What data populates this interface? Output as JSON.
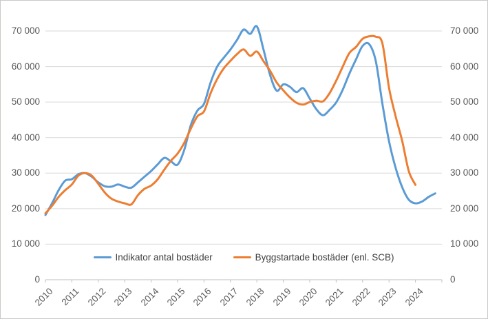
{
  "chart_data": {
    "type": "line",
    "title": "",
    "xlabel": "",
    "ylabel": "",
    "xlim": [
      2010,
      2025
    ],
    "ylim": [
      0,
      75000
    ],
    "grid": "horizontal",
    "legend_position": "bottom",
    "x_tick_labels": [
      "2010",
      "2011",
      "2012",
      "2013",
      "2014",
      "2015",
      "2016",
      "2017",
      "2018",
      "2019",
      "2020",
      "2021",
      "2022",
      "2023",
      "2024"
    ],
    "y_ticks": [
      0,
      10000,
      20000,
      30000,
      40000,
      50000,
      60000,
      70000
    ],
    "y_tick_labels": [
      "0",
      "10 000",
      "20 000",
      "30 000",
      "40 000",
      "50 000",
      "60 000",
      "70 000"
    ],
    "y_axis_sides": "both",
    "grid_color": "#d9d9d9",
    "axis_color": "#bfbfbf",
    "tick_label_color": "#595959",
    "legend_text_color": "#404040",
    "series": [
      {
        "name": "Indikator antal bostäder",
        "color": "#5b9bd5",
        "x": [
          2010.0,
          2010.25,
          2010.5,
          2010.75,
          2011.0,
          2011.25,
          2011.5,
          2011.75,
          2012.0,
          2012.25,
          2012.5,
          2012.75,
          2013.0,
          2013.25,
          2013.5,
          2013.75,
          2014.0,
          2014.25,
          2014.5,
          2014.75,
          2015.0,
          2015.25,
          2015.5,
          2015.75,
          2016.0,
          2016.25,
          2016.5,
          2016.75,
          2017.0,
          2017.25,
          2017.5,
          2017.75,
          2018.0,
          2018.25,
          2018.5,
          2018.75,
          2019.0,
          2019.25,
          2019.5,
          2019.75,
          2020.0,
          2020.25,
          2020.5,
          2020.75,
          2021.0,
          2021.25,
          2021.5,
          2021.75,
          2022.0,
          2022.25,
          2022.5,
          2022.75,
          2023.0,
          2023.25,
          2023.5,
          2023.75,
          2024.0,
          2024.25,
          2024.5,
          2024.75
        ],
        "values": [
          18200,
          21500,
          25200,
          27900,
          28300,
          29700,
          30000,
          29000,
          27400,
          26300,
          26200,
          26800,
          26200,
          25900,
          27400,
          29000,
          30600,
          32500,
          34300,
          33300,
          32400,
          36500,
          43500,
          47600,
          49500,
          55500,
          60000,
          62500,
          64800,
          67500,
          70400,
          69200,
          71300,
          64800,
          57600,
          53200,
          55000,
          54300,
          52800,
          53900,
          51000,
          48000,
          46300,
          47800,
          49900,
          53500,
          58000,
          62000,
          65800,
          66300,
          61500,
          49500,
          39000,
          31500,
          26000,
          22500,
          21500,
          22000,
          23300,
          24300
        ]
      },
      {
        "name": "Byggstartade bostäder (enl. SCB)",
        "color": "#ed7d31",
        "x": [
          2010.0,
          2010.25,
          2010.5,
          2010.75,
          2011.0,
          2011.25,
          2011.5,
          2011.75,
          2012.0,
          2012.25,
          2012.5,
          2012.75,
          2013.0,
          2013.25,
          2013.5,
          2013.75,
          2014.0,
          2014.25,
          2014.5,
          2014.75,
          2015.0,
          2015.25,
          2015.5,
          2015.75,
          2016.0,
          2016.25,
          2016.5,
          2016.75,
          2017.0,
          2017.25,
          2017.5,
          2017.75,
          2018.0,
          2018.25,
          2018.5,
          2018.75,
          2019.0,
          2019.25,
          2019.5,
          2019.75,
          2020.0,
          2020.25,
          2020.5,
          2020.75,
          2021.0,
          2021.25,
          2021.5,
          2021.75,
          2022.0,
          2022.25,
          2022.5,
          2022.75,
          2023.0,
          2023.25,
          2023.5,
          2023.75,
          2024.0
        ],
        "values": [
          18700,
          20800,
          23300,
          25200,
          26800,
          29300,
          30000,
          29300,
          27000,
          24500,
          22800,
          22000,
          21500,
          21200,
          23800,
          25600,
          26500,
          28300,
          31000,
          33500,
          35500,
          38500,
          42500,
          46000,
          47400,
          52500,
          56500,
          59500,
          61600,
          63500,
          64800,
          63000,
          64200,
          61500,
          58800,
          55500,
          53300,
          51300,
          49800,
          49300,
          50000,
          50400,
          50200,
          52500,
          56000,
          60000,
          63800,
          65500,
          67800,
          68500,
          68400,
          66500,
          54000,
          46000,
          39000,
          30500,
          26700
        ]
      }
    ]
  },
  "legend": {
    "items": [
      {
        "label": "Indikator antal bostäder",
        "marker": "blue-line"
      },
      {
        "label": "Byggstartade bostäder (enl. SCB)",
        "marker": "orange-line"
      }
    ]
  }
}
